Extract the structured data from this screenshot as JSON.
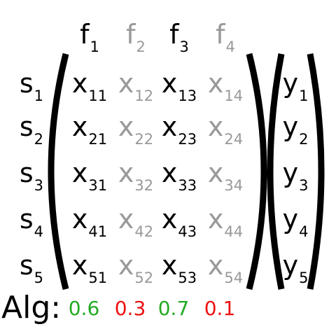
{
  "colors": {
    "strong": "#000000",
    "weak": "#999999",
    "good": "#22aa22",
    "bad": "#ee1111"
  },
  "features": [
    {
      "base": "f",
      "sub": "1",
      "weak": false
    },
    {
      "base": "f",
      "sub": "2",
      "weak": true
    },
    {
      "base": "f",
      "sub": "3",
      "weak": false
    },
    {
      "base": "f",
      "sub": "4",
      "weak": true
    }
  ],
  "samples": [
    {
      "base": "s",
      "sub": "1"
    },
    {
      "base": "s",
      "sub": "2"
    },
    {
      "base": "s",
      "sub": "3"
    },
    {
      "base": "s",
      "sub": "4"
    },
    {
      "base": "s",
      "sub": "5"
    }
  ],
  "matrix": [
    [
      {
        "base": "x",
        "sub": "11"
      },
      {
        "base": "x",
        "sub": "12"
      },
      {
        "base": "x",
        "sub": "13"
      },
      {
        "base": "x",
        "sub": "14"
      }
    ],
    [
      {
        "base": "x",
        "sub": "21"
      },
      {
        "base": "x",
        "sub": "22"
      },
      {
        "base": "x",
        "sub": "23"
      },
      {
        "base": "x",
        "sub": "24"
      }
    ],
    [
      {
        "base": "x",
        "sub": "31"
      },
      {
        "base": "x",
        "sub": "32"
      },
      {
        "base": "x",
        "sub": "33"
      },
      {
        "base": "x",
        "sub": "34"
      }
    ],
    [
      {
        "base": "x",
        "sub": "41"
      },
      {
        "base": "x",
        "sub": "42"
      },
      {
        "base": "x",
        "sub": "43"
      },
      {
        "base": "x",
        "sub": "44"
      }
    ],
    [
      {
        "base": "x",
        "sub": "51"
      },
      {
        "base": "x",
        "sub": "52"
      },
      {
        "base": "x",
        "sub": "53"
      },
      {
        "base": "x",
        "sub": "54"
      }
    ]
  ],
  "targets": [
    {
      "base": "y",
      "sub": "1"
    },
    {
      "base": "y",
      "sub": "2"
    },
    {
      "base": "y",
      "sub": "3"
    },
    {
      "base": "y",
      "sub": "4"
    },
    {
      "base": "y",
      "sub": "5"
    }
  ],
  "algorithm": {
    "label": "Alg:",
    "scores": [
      {
        "text": "0.6",
        "status": "good"
      },
      {
        "text": "0.3",
        "status": "bad"
      },
      {
        "text": "0.7",
        "status": "good"
      },
      {
        "text": "0.1",
        "status": "bad"
      }
    ]
  }
}
